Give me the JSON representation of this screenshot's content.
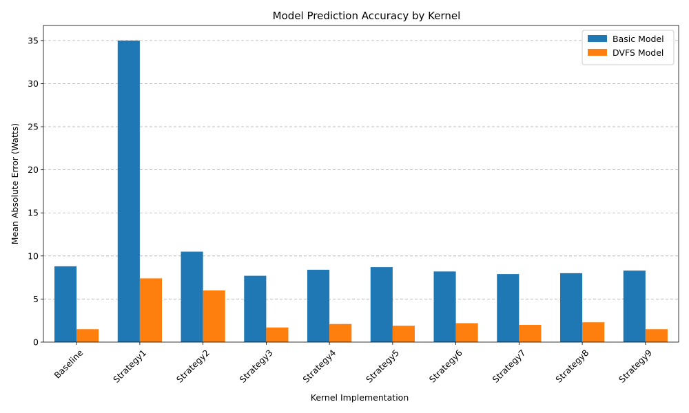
{
  "chart_data": {
    "type": "bar",
    "title": "Model Prediction Accuracy by Kernel",
    "xlabel": "Kernel Implementation",
    "ylabel": "Mean Absolute Error (Watts)",
    "categories": [
      "Baseline",
      "Strategy1",
      "Strategy2",
      "Strategy3",
      "Strategy4",
      "Strategy5",
      "Strategy6",
      "Strategy7",
      "Strategy8",
      "Strategy9"
    ],
    "series": [
      {
        "name": "Basic Model",
        "color": "#1f77b4",
        "values": [
          8.8,
          35.0,
          10.5,
          7.7,
          8.4,
          8.7,
          8.2,
          7.9,
          8.0,
          8.3
        ]
      },
      {
        "name": "DVFS Model",
        "color": "#ff7f0e",
        "values": [
          1.5,
          7.4,
          6.0,
          1.7,
          2.1,
          1.9,
          2.2,
          2.0,
          2.3,
          1.5
        ]
      }
    ],
    "ylim": [
      0,
      36.75
    ],
    "yticks": [
      0,
      5,
      10,
      15,
      20,
      25,
      30,
      35
    ],
    "grid": "y-dashed",
    "legend": "top-right"
  }
}
